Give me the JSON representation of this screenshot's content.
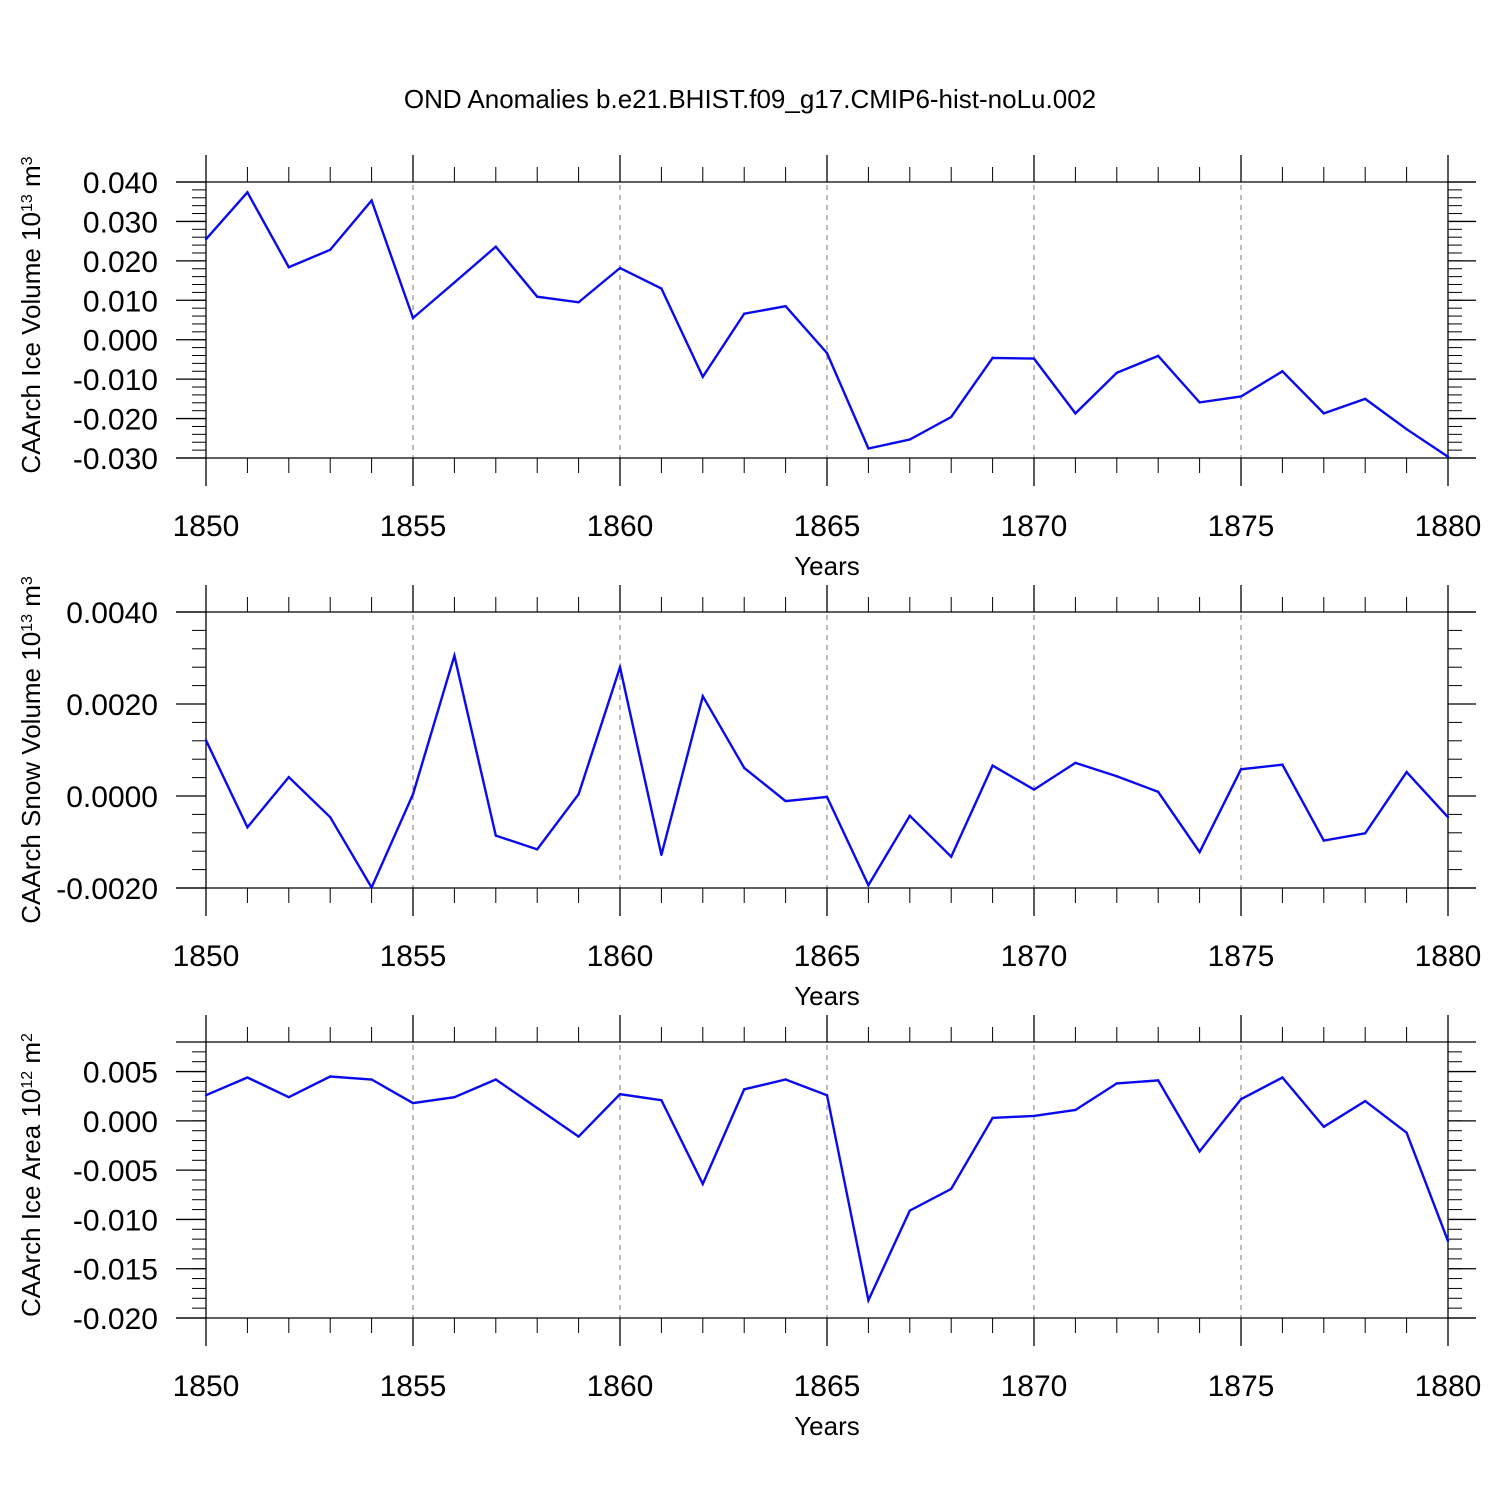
{
  "title": "OND Anomalies b.e21.BHIST.f09_g17.CMIP6-hist-noLu.002",
  "colors": {
    "line": "#0a0af0",
    "axis": "#000000",
    "grid": "#777777"
  },
  "chart_data": [
    {
      "type": "line",
      "title": "",
      "xlabel": "Years",
      "ylabel": "CAArch Ice Volume 10",
      "ylabel_sup": "13",
      "ylabel_unit": " m",
      "ylabel_unit_sup": "3",
      "xlim": [
        1850,
        1880
      ],
      "ylim": [
        -0.03,
        0.04
      ],
      "zero_line": false,
      "x_ticks": [
        "1850",
        "1855",
        "1860",
        "1865",
        "1870",
        "1875",
        "1880"
      ],
      "y_ticks": [
        "0.040",
        "0.030",
        "0.020",
        "0.010",
        "0.000",
        "-0.010",
        "-0.020",
        "-0.030"
      ],
      "y_tick_values": [
        0.04,
        0.03,
        0.02,
        0.01,
        0.0,
        -0.01,
        -0.02,
        -0.03
      ],
      "y_minor_step": 0.002,
      "grid": "vertical dashed at major x ticks",
      "x": [
        1850,
        1851,
        1852,
        1853,
        1854,
        1855,
        1856,
        1857,
        1858,
        1859,
        1860,
        1861,
        1862,
        1863,
        1864,
        1865,
        1866,
        1867,
        1868,
        1869,
        1870,
        1871,
        1872,
        1873,
        1874,
        1875,
        1876,
        1877,
        1878,
        1879,
        1880
      ],
      "y": [
        0.0255,
        0.0374,
        0.0184,
        0.0228,
        0.0353,
        0.0055,
        0.0145,
        0.0236,
        0.0109,
        0.0095,
        0.0182,
        0.013,
        -0.0094,
        0.0066,
        0.0085,
        -0.0034,
        -0.0276,
        -0.0253,
        -0.0196,
        -0.0046,
        -0.0048,
        -0.0187,
        -0.0084,
        -0.0041,
        -0.0159,
        -0.0144,
        -0.008,
        -0.0187,
        -0.015,
        -0.0227,
        -0.0297
      ]
    },
    {
      "type": "line",
      "title": "",
      "xlabel": "Years",
      "ylabel": "CAArch Snow Volume 10",
      "ylabel_sup": "13",
      "ylabel_unit": " m",
      "ylabel_unit_sup": "3",
      "xlim": [
        1850,
        1880
      ],
      "ylim": [
        -0.002,
        0.004
      ],
      "zero_line": false,
      "x_ticks": [
        "1850",
        "1855",
        "1860",
        "1865",
        "1870",
        "1875",
        "1880"
      ],
      "y_ticks": [
        "0.0040",
        "0.0020",
        "0.0000",
        "-0.0020"
      ],
      "y_tick_values": [
        0.004,
        0.002,
        0.0,
        -0.002
      ],
      "y_minor_step": 0.0004,
      "grid": "vertical dashed at major x ticks",
      "x": [
        1850,
        1851,
        1852,
        1853,
        1854,
        1855,
        1856,
        1857,
        1858,
        1859,
        1860,
        1861,
        1862,
        1863,
        1864,
        1865,
        1866,
        1867,
        1868,
        1869,
        1870,
        1871,
        1872,
        1873,
        1874,
        1875,
        1876,
        1877,
        1878,
        1879,
        1880
      ],
      "y": [
        0.00121,
        -0.00068,
        0.00041,
        -0.00046,
        -0.00199,
        4e-05,
        0.00305,
        -0.00086,
        -0.00116,
        4e-05,
        0.0028,
        -0.00128,
        0.00217,
        0.00061,
        -0.00011,
        -2e-05,
        -0.00194,
        -0.00043,
        -0.00132,
        0.00066,
        0.00014,
        0.00072,
        0.00043,
        9e-05,
        -0.00122,
        0.00058,
        0.00068,
        -0.00097,
        -0.00081,
        0.00052,
        -0.00046
      ]
    },
    {
      "type": "line",
      "title": "",
      "xlabel": "Years",
      "ylabel": "CAArch Ice Area 10",
      "ylabel_sup": "12",
      "ylabel_unit": " m",
      "ylabel_unit_sup": "2",
      "xlim": [
        1850,
        1880
      ],
      "ylim": [
        -0.02,
        0.008
      ],
      "zero_line": false,
      "x_ticks": [
        "1850",
        "1855",
        "1860",
        "1865",
        "1870",
        "1875",
        "1880"
      ],
      "y_ticks": [
        "0.005",
        "0.000",
        "-0.005",
        "-0.010",
        "-0.015",
        "-0.020"
      ],
      "y_tick_values": [
        0.005,
        0.0,
        -0.005,
        -0.01,
        -0.015,
        -0.02
      ],
      "y_minor_step": 0.001,
      "grid": "vertical dashed at major x ticks",
      "x": [
        1850,
        1851,
        1852,
        1853,
        1854,
        1855,
        1856,
        1857,
        1858,
        1859,
        1860,
        1861,
        1862,
        1863,
        1864,
        1865,
        1866,
        1867,
        1868,
        1869,
        1870,
        1871,
        1872,
        1873,
        1874,
        1875,
        1876,
        1877,
        1878,
        1879,
        1880
      ],
      "y": [
        0.0026,
        0.0044,
        0.0024,
        0.0045,
        0.0042,
        0.0018,
        0.0024,
        0.0042,
        0.0013,
        -0.0016,
        0.0027,
        0.0021,
        -0.0064,
        0.0032,
        0.0042,
        0.0026,
        -0.0182,
        -0.0091,
        -0.0069,
        0.0003,
        0.0005,
        0.0011,
        0.0038,
        0.0041,
        -0.0031,
        0.0022,
        0.0044,
        -0.0006,
        0.002,
        -0.0012,
        -0.0122
      ]
    }
  ]
}
